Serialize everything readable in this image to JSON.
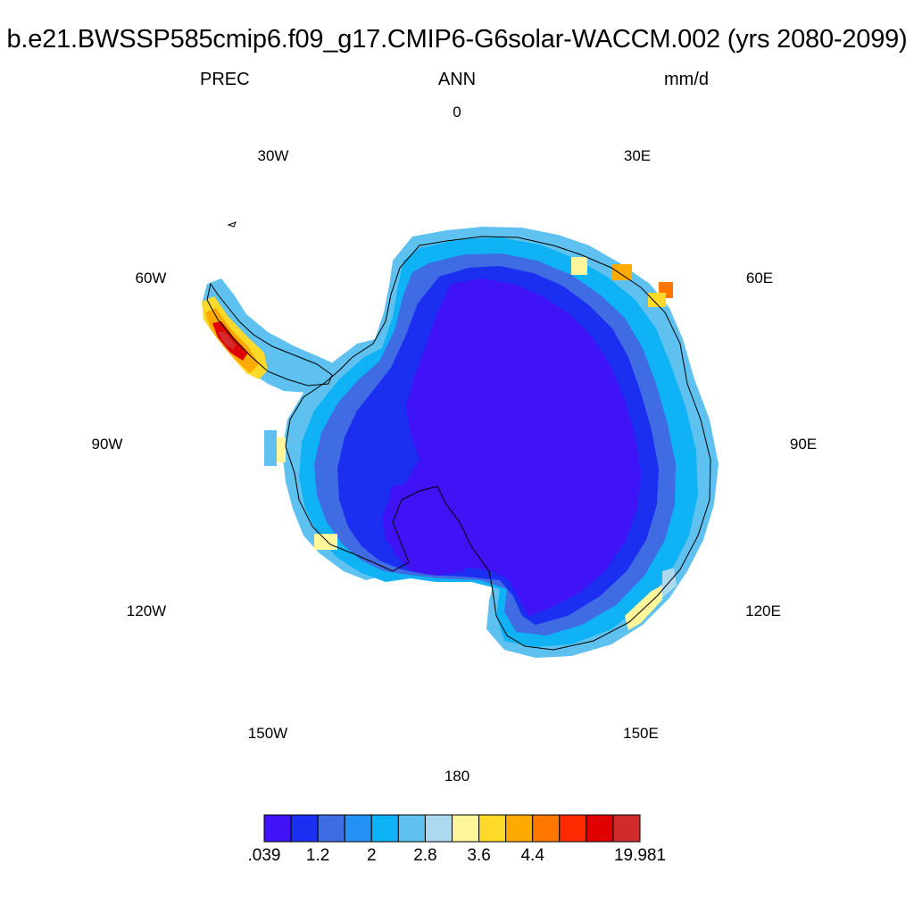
{
  "title": "b.e21.BWSSP585cmip6.f09_g17.CMIP6-G6solar-WACCM.002 (yrs 2080-2099)",
  "subtitle": {
    "variable": "PREC",
    "season": "ANN",
    "units": "mm/d"
  },
  "map": {
    "projection": "south-polar-stereographic",
    "region": "Antarctica",
    "longitude_labels": [
      "0",
      "30E",
      "60E",
      "90E",
      "120E",
      "150E",
      "180",
      "150W",
      "120W",
      "90W",
      "60W",
      "30W"
    ],
    "field_description_levels": {
      "interior": "< 0.039-1.2 (lowest bins)",
      "coast": "1.2-2.8",
      "peninsula_max": "4.4-19.981"
    }
  },
  "colorbar": {
    "colors": [
      "#3f13f5",
      "#1a2ff0",
      "#3f6be3",
      "#2391f5",
      "#0fb2f5",
      "#5ec1ef",
      "#add8ee",
      "#fff59a",
      "#ffd929",
      "#ffaa00",
      "#ff7700",
      "#ff2a00",
      "#e00000",
      "#d22b2b"
    ],
    "tick_labels": [
      ".039",
      "1.2",
      "2",
      "2.8",
      "3.6",
      "4.4",
      "19.981"
    ],
    "tick_edge_index": [
      0,
      2,
      4,
      6,
      8,
      10,
      14
    ]
  },
  "chart_data": {
    "type": "heatmap",
    "title": "b.e21.BWSSP585cmip6.f09_g17.CMIP6-G6solar-WACCM.002 (yrs 2080-2099)",
    "variable": "PREC",
    "units": "mm/d",
    "period": "ANN",
    "years": "2080-2099",
    "color_levels": [
      ".039",
      "1.2",
      "2",
      "2.8",
      "3.6",
      "4.4",
      "19.981"
    ],
    "num_color_bins": 14
  }
}
